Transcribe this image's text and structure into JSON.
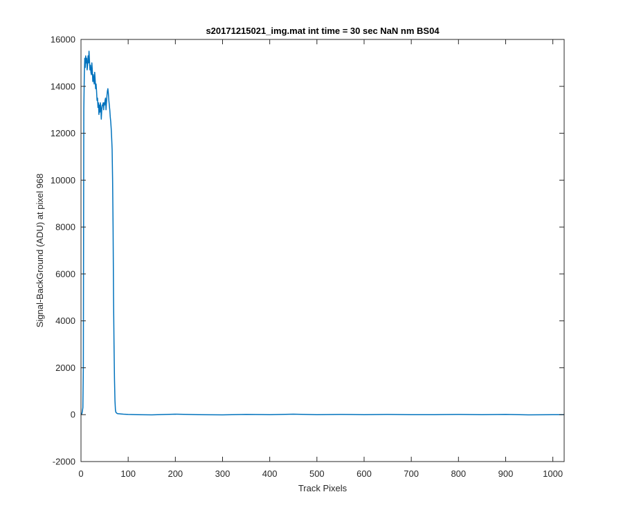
{
  "chart_data": {
    "type": "line",
    "title": "s20171215021_img.mat int time = 30 sec  NaN nm BS04",
    "xlabel": "Track Pixels",
    "ylabel": "Signal-BackGround (ADU) at pixel 968",
    "xlim": [
      0,
      1024
    ],
    "ylim": [
      -2000,
      16000
    ],
    "xticks": [
      0,
      100,
      200,
      300,
      400,
      500,
      600,
      700,
      800,
      900,
      1000
    ],
    "yticks": [
      -2000,
      0,
      2000,
      4000,
      6000,
      8000,
      10000,
      12000,
      14000,
      16000
    ],
    "xtick_labels": [
      "0",
      "100",
      "200",
      "300",
      "400",
      "500",
      "600",
      "700",
      "800",
      "900",
      "1000"
    ],
    "ytick_labels": [
      "-2000",
      "0",
      "2000",
      "4000",
      "6000",
      "8000",
      "10000",
      "12000",
      "14000",
      "16000"
    ],
    "grid": false,
    "series_color": "#0072BD",
    "series": [
      {
        "x": [
          1,
          2,
          3,
          4,
          5,
          6,
          7,
          8,
          9,
          10,
          11,
          12,
          13,
          14,
          15,
          16,
          17,
          18,
          19,
          20,
          21,
          22,
          23,
          24,
          25,
          26,
          27,
          28,
          29,
          30,
          31,
          32,
          33,
          34,
          35,
          36,
          37,
          38,
          39,
          40,
          41,
          42,
          43,
          44,
          45,
          46,
          47,
          48,
          49,
          50,
          51,
          52,
          53,
          54,
          55,
          56,
          57,
          58,
          59,
          60,
          61,
          62,
          63,
          64,
          65,
          66,
          67,
          68,
          69,
          70,
          71,
          72,
          73,
          74,
          75,
          76,
          77,
          78,
          79,
          80,
          85,
          90,
          100,
          120,
          150,
          200,
          250,
          300,
          350,
          400,
          450,
          500,
          550,
          600,
          650,
          700,
          750,
          800,
          850,
          900,
          950,
          1000,
          1024
        ],
        "y": [
          0,
          50,
          150,
          300,
          2000,
          13000,
          14500,
          15200,
          14800,
          15300,
          15000,
          15200,
          14700,
          14900,
          15300,
          15000,
          15500,
          15100,
          14700,
          14900,
          14600,
          14500,
          15000,
          14700,
          14200,
          14500,
          14300,
          14100,
          14600,
          14300,
          13900,
          14100,
          13800,
          13400,
          13500,
          13100,
          13300,
          12800,
          13200,
          12900,
          13300,
          13100,
          12600,
          13000,
          13200,
          13200,
          13300,
          13000,
          13300,
          13200,
          13400,
          13500,
          13000,
          13300,
          13600,
          13800,
          13900,
          13700,
          13400,
          13200,
          13000,
          12700,
          12500,
          12200,
          11800,
          11300,
          10000,
          8000,
          5000,
          3000,
          1500,
          600,
          200,
          100,
          80,
          60,
          50,
          40,
          40,
          40,
          30,
          20,
          10,
          0,
          -10,
          20,
          0,
          -10,
          10,
          0,
          20,
          0,
          10,
          0,
          10,
          0,
          0,
          10,
          0,
          10,
          -10,
          0,
          0
        ]
      }
    ]
  }
}
